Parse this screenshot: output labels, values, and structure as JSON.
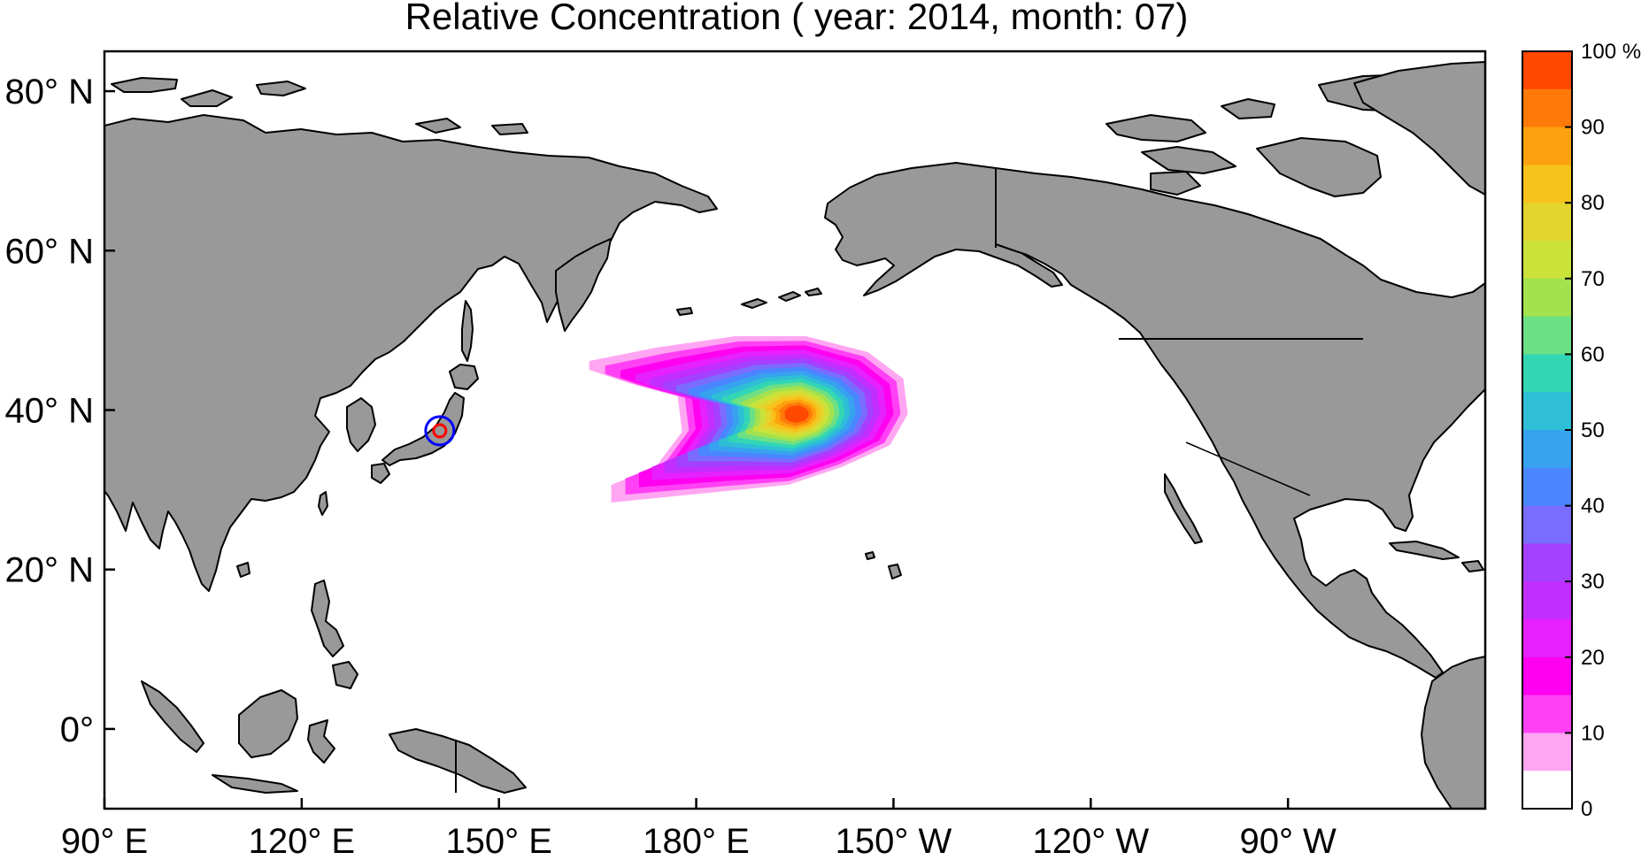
{
  "title": "Relative Concentration ( year: 2014, month: 07)",
  "map": {
    "lon_range": [
      90,
      300
    ],
    "lat_range": [
      -10,
      85
    ],
    "land_color": "#999999",
    "lat_ticks": [
      {
        "lat": 80,
        "label": "80° N"
      },
      {
        "lat": 60,
        "label": "60° N"
      },
      {
        "lat": 40,
        "label": "40° N"
      },
      {
        "lat": 20,
        "label": "20° N"
      },
      {
        "lat": 0,
        "label": "0°"
      }
    ],
    "lon_ticks": [
      {
        "lon": 90,
        "label": "90° E"
      },
      {
        "lon": 120,
        "label": "120° E"
      },
      {
        "lon": 150,
        "label": "150° E"
      },
      {
        "lon": 180,
        "label": "180° E"
      },
      {
        "lon": 210,
        "label": "150° W"
      },
      {
        "lon": 240,
        "label": "120° W"
      },
      {
        "lon": 270,
        "label": "90° W"
      }
    ],
    "source_marker": {
      "lon": 141.0,
      "lat": 37.4,
      "outer_color": "#0000ff",
      "inner_color": "#ff0000"
    }
  },
  "plume": {
    "peak_lon": 194,
    "peak_lat": 39.5,
    "peak_value": 100
  },
  "colorbar": {
    "unit": "%",
    "ticks": [
      {
        "value": 100,
        "label": "100 %"
      },
      {
        "value": 90,
        "label": "90"
      },
      {
        "value": 80,
        "label": "80"
      },
      {
        "value": 70,
        "label": "70"
      },
      {
        "value": 60,
        "label": "60"
      },
      {
        "value": 50,
        "label": "50"
      },
      {
        "value": 40,
        "label": "40"
      },
      {
        "value": 30,
        "label": "30"
      },
      {
        "value": 20,
        "label": "20"
      },
      {
        "value": 10,
        "label": "10"
      },
      {
        "value": 0,
        "label": "0"
      }
    ],
    "colors": [
      "#ffffff",
      "#ffa6f2",
      "#ff40f5",
      "#ff00f0",
      "#e620ff",
      "#c22eff",
      "#a440ff",
      "#7a6cff",
      "#4a86ff",
      "#37a2ef",
      "#2ebfd6",
      "#32d6b4",
      "#6ddf84",
      "#a3e24e",
      "#cbe23a",
      "#e4d42e",
      "#f6c21b",
      "#ffa10f",
      "#ff7a08",
      "#ff4800"
    ]
  }
}
